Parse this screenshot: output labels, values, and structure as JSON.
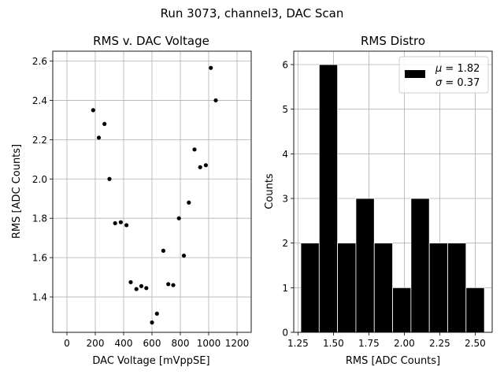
{
  "figure": {
    "suptitle": "Run 3073, channel3, DAC Scan"
  },
  "chart_data": [
    {
      "type": "scatter",
      "title": "RMS v. DAC Voltage",
      "xlabel": "DAC Voltage [mVppSE]",
      "ylabel": "RMS [ADC Counts]",
      "xlim": [
        -100,
        1300
      ],
      "ylim": [
        1.22,
        2.65
      ],
      "xticks": [
        0,
        200,
        400,
        600,
        800,
        1000,
        1200
      ],
      "xtick_labels": [
        "0",
        "200",
        "400",
        "600",
        "800",
        "1000",
        "1200"
      ],
      "yticks": [
        1.4,
        1.6,
        1.8,
        2.0,
        2.2,
        2.4,
        2.6
      ],
      "ytick_labels": [
        "1.4",
        "1.6",
        "1.8",
        "2.0",
        "2.2",
        "2.4",
        "2.6"
      ],
      "grid": true,
      "color": "#000000",
      "points": [
        {
          "x": 185,
          "y": 2.35
        },
        {
          "x": 225,
          "y": 2.21
        },
        {
          "x": 265,
          "y": 2.28
        },
        {
          "x": 300,
          "y": 2.0
        },
        {
          "x": 340,
          "y": 1.775
        },
        {
          "x": 380,
          "y": 1.78
        },
        {
          "x": 420,
          "y": 1.765
        },
        {
          "x": 450,
          "y": 1.475
        },
        {
          "x": 490,
          "y": 1.44
        },
        {
          "x": 525,
          "y": 1.455
        },
        {
          "x": 560,
          "y": 1.445
        },
        {
          "x": 600,
          "y": 1.27
        },
        {
          "x": 635,
          "y": 1.315
        },
        {
          "x": 680,
          "y": 1.635
        },
        {
          "x": 715,
          "y": 1.465
        },
        {
          "x": 750,
          "y": 1.46
        },
        {
          "x": 790,
          "y": 1.8
        },
        {
          "x": 825,
          "y": 1.61
        },
        {
          "x": 860,
          "y": 1.88
        },
        {
          "x": 900,
          "y": 2.15
        },
        {
          "x": 940,
          "y": 2.06
        },
        {
          "x": 980,
          "y": 2.07
        },
        {
          "x": 1015,
          "y": 2.565
        },
        {
          "x": 1050,
          "y": 2.4
        }
      ]
    },
    {
      "type": "bar",
      "title": "RMS Distro",
      "xlabel": "RMS [ADC Counts]",
      "ylabel": "Counts",
      "xlim": [
        1.22,
        2.62
      ],
      "ylim": [
        0,
        6.3
      ],
      "xticks": [
        1.25,
        1.5,
        1.75,
        2.0,
        2.25,
        2.5
      ],
      "xtick_labels": [
        "1.25",
        "1.50",
        "1.75",
        "2.00",
        "2.25",
        "2.50"
      ],
      "yticks": [
        0,
        1,
        2,
        3,
        4,
        5,
        6
      ],
      "ytick_labels": [
        "0",
        "1",
        "2",
        "3",
        "4",
        "5",
        "6"
      ],
      "grid": true,
      "bar_color": "#000000",
      "bin_start": 1.27,
      "bin_width": 0.1295,
      "counts": [
        2,
        6,
        2,
        3,
        2,
        1,
        3,
        2,
        2,
        1
      ],
      "legend": {
        "position": "upper right",
        "lines": [
          "$\\mu$ = 1.82",
          "$\\sigma$ = 0.37"
        ],
        "mu_symbol": "μ",
        "mu_text": " = 1.82",
        "sigma_symbol": "σ",
        "sigma_text": " = 0.37"
      }
    }
  ]
}
